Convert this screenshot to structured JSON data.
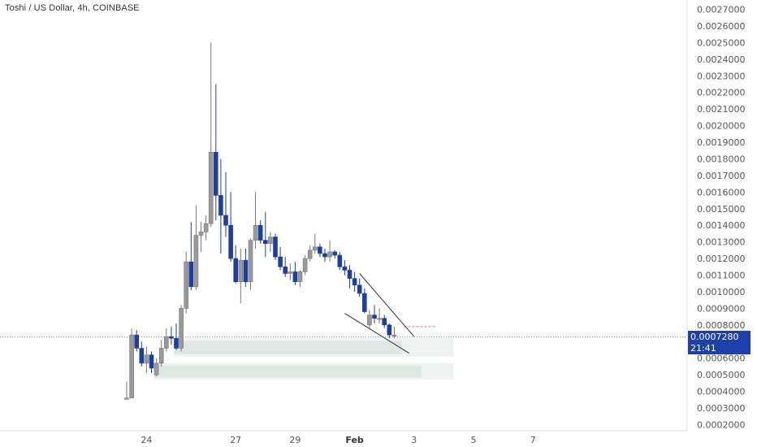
{
  "header": {
    "title": "Toshi / US Dollar, 4h, COINBASE"
  },
  "price_badge": {
    "price": "0.0007280",
    "countdown": "21:41"
  },
  "colors": {
    "up": "#9a9a9a",
    "down": "#1e3f9e",
    "zone": "#dfe7e3",
    "badge": "#1e40a8",
    "trendline": "#333333"
  },
  "chart_data": {
    "type": "candlestick",
    "title": "Toshi / US Dollar, 4h, COINBASE",
    "y_ticks": [
      "0.0027000",
      "0.0026000",
      "0.0025000",
      "0.0024000",
      "0.0023000",
      "0.0022000",
      "0.0021000",
      "0.0020000",
      "0.0019000",
      "0.0018000",
      "0.0017000",
      "0.0016000",
      "0.0015000",
      "0.0014000",
      "0.0013000",
      "0.0012000",
      "0.0011000",
      "0.0010000",
      "0.0009000",
      "0.0008000",
      "0.0007000",
      "0.0006000",
      "0.0005000",
      "0.0004000",
      "0.0003000",
      "0.0002000"
    ],
    "ylim": [
      0.00015,
      0.00273
    ],
    "x_ticks": [
      {
        "label": "24",
        "index": 4
      },
      {
        "label": "27",
        "index": 22
      },
      {
        "label": "29",
        "index": 34
      },
      {
        "label": "Feb",
        "index": 46
      },
      {
        "label": "3",
        "index": 58
      },
      {
        "label": "5",
        "index": 70
      },
      {
        "label": "7",
        "index": 82
      }
    ],
    "last_price": 0.000728,
    "candles": [
      {
        "o": 0.00036,
        "h": 0.00046,
        "l": 0.00036,
        "c": 0.00036
      },
      {
        "o": 0.00036,
        "h": 0.00078,
        "l": 0.00036,
        "c": 0.00074
      },
      {
        "o": 0.00074,
        "h": 0.00077,
        "l": 0.00064,
        "c": 0.00066
      },
      {
        "o": 0.00066,
        "h": 0.0007,
        "l": 0.00055,
        "c": 0.00057
      },
      {
        "o": 0.00057,
        "h": 0.00067,
        "l": 0.00051,
        "c": 0.00062
      },
      {
        "o": 0.00062,
        "h": 0.00064,
        "l": 0.00051,
        "c": 0.00054
      },
      {
        "o": 0.0005,
        "h": 0.0006,
        "l": 0.00049,
        "c": 0.00057
      },
      {
        "o": 0.00057,
        "h": 0.00071,
        "l": 0.00055,
        "c": 0.00066
      },
      {
        "o": 0.00066,
        "h": 0.00078,
        "l": 0.00064,
        "c": 0.00073
      },
      {
        "o": 0.00073,
        "h": 0.00079,
        "l": 0.00068,
        "c": 0.00072
      },
      {
        "o": 0.00072,
        "h": 0.00081,
        "l": 0.00065,
        "c": 0.00066
      },
      {
        "o": 0.00066,
        "h": 0.00092,
        "l": 0.00064,
        "c": 0.0009
      },
      {
        "o": 0.0009,
        "h": 0.00124,
        "l": 0.00087,
        "c": 0.00118
      },
      {
        "o": 0.00118,
        "h": 0.00142,
        "l": 0.00101,
        "c": 0.00103
      },
      {
        "o": 0.00103,
        "h": 0.00152,
        "l": 0.00101,
        "c": 0.00134
      },
      {
        "o": 0.00134,
        "h": 0.00142,
        "l": 0.00124,
        "c": 0.00136
      },
      {
        "o": 0.00136,
        "h": 0.00146,
        "l": 0.00131,
        "c": 0.00141
      },
      {
        "o": 0.00141,
        "h": 0.0025,
        "l": 0.00139,
        "c": 0.00184
      },
      {
        "o": 0.00184,
        "h": 0.00225,
        "l": 0.00143,
        "c": 0.00158
      },
      {
        "o": 0.00158,
        "h": 0.0018,
        "l": 0.00123,
        "c": 0.00146
      },
      {
        "o": 0.00146,
        "h": 0.00172,
        "l": 0.00133,
        "c": 0.0014
      },
      {
        "o": 0.0014,
        "h": 0.0016,
        "l": 0.00118,
        "c": 0.0012
      },
      {
        "o": 0.0012,
        "h": 0.00128,
        "l": 0.00105,
        "c": 0.00106
      },
      {
        "o": 0.00106,
        "h": 0.00126,
        "l": 0.00093,
        "c": 0.00119
      },
      {
        "o": 0.00119,
        "h": 0.00126,
        "l": 0.00103,
        "c": 0.00106
      },
      {
        "o": 0.00106,
        "h": 0.00132,
        "l": 0.00101,
        "c": 0.00131
      },
      {
        "o": 0.00131,
        "h": 0.0016,
        "l": 0.00126,
        "c": 0.0014
      },
      {
        "o": 0.0014,
        "h": 0.00143,
        "l": 0.00129,
        "c": 0.00131
      },
      {
        "o": 0.00131,
        "h": 0.00148,
        "l": 0.00121,
        "c": 0.00129
      },
      {
        "o": 0.00129,
        "h": 0.00136,
        "l": 0.00124,
        "c": 0.00133
      },
      {
        "o": 0.00133,
        "h": 0.00135,
        "l": 0.00119,
        "c": 0.00121
      },
      {
        "o": 0.00121,
        "h": 0.00127,
        "l": 0.00113,
        "c": 0.00115
      },
      {
        "o": 0.00115,
        "h": 0.00121,
        "l": 0.00109,
        "c": 0.00111
      },
      {
        "o": 0.00111,
        "h": 0.00117,
        "l": 0.00107,
        "c": 0.00112
      },
      {
        "o": 0.00112,
        "h": 0.00118,
        "l": 0.00104,
        "c": 0.00106
      },
      {
        "o": 0.00106,
        "h": 0.00113,
        "l": 0.00103,
        "c": 0.00112
      },
      {
        "o": 0.00112,
        "h": 0.00122,
        "l": 0.0011,
        "c": 0.0012
      },
      {
        "o": 0.0012,
        "h": 0.00128,
        "l": 0.00118,
        "c": 0.00125
      },
      {
        "o": 0.00125,
        "h": 0.00135,
        "l": 0.00123,
        "c": 0.00127
      },
      {
        "o": 0.00127,
        "h": 0.00129,
        "l": 0.00121,
        "c": 0.00123
      },
      {
        "o": 0.00123,
        "h": 0.00126,
        "l": 0.00118,
        "c": 0.00121
      },
      {
        "o": 0.00121,
        "h": 0.00131,
        "l": 0.00118,
        "c": 0.00124
      },
      {
        "o": 0.00124,
        "h": 0.00125,
        "l": 0.0012,
        "c": 0.00122
      },
      {
        "o": 0.00122,
        "h": 0.00124,
        "l": 0.00113,
        "c": 0.00115
      },
      {
        "o": 0.00115,
        "h": 0.00119,
        "l": 0.0011,
        "c": 0.00113
      },
      {
        "o": 0.00113,
        "h": 0.00116,
        "l": 0.00102,
        "c": 0.00108
      },
      {
        "o": 0.00108,
        "h": 0.00112,
        "l": 0.001,
        "c": 0.00104
      },
      {
        "o": 0.00104,
        "h": 0.00108,
        "l": 0.00097,
        "c": 0.00099
      },
      {
        "o": 0.00099,
        "h": 0.00102,
        "l": 0.00087,
        "c": 0.00088
      },
      {
        "o": 0.0008,
        "h": 0.00089,
        "l": 0.00078,
        "c": 0.00086
      },
      {
        "o": 0.00086,
        "h": 0.00092,
        "l": 0.00081,
        "c": 0.00084
      },
      {
        "o": 0.00084,
        "h": 0.0009,
        "l": 0.00081,
        "c": 0.00084
      },
      {
        "o": 0.00084,
        "h": 0.00086,
        "l": 0.00078,
        "c": 0.0008
      },
      {
        "o": 0.0008,
        "h": 0.00081,
        "l": 0.00072,
        "c": 0.00074
      },
      {
        "o": 0.00074,
        "h": 0.00079,
        "l": 0.00072,
        "c": 0.00074
      }
    ],
    "zones": [
      {
        "x_start_index": 10,
        "x_end_index": 55,
        "y_top": 0.00072,
        "y_bottom": 0.00061,
        "extend_to_index": 66
      },
      {
        "x_start_index": 6,
        "x_end_index": 59,
        "y_top": 0.00057,
        "y_bottom": 0.00047,
        "extend_to_index": 66
      }
    ],
    "trendlines": [
      {
        "i1": 47,
        "p1": 0.00111,
        "i2": 58,
        "p2": 0.00073
      },
      {
        "i1": 44,
        "p1": 0.00087,
        "i2": 57,
        "p2": 0.00063
      }
    ],
    "current_price_line": 0.000728,
    "dashed_level": {
      "price": 0.00079,
      "i1": 56,
      "i2": 59
    }
  }
}
